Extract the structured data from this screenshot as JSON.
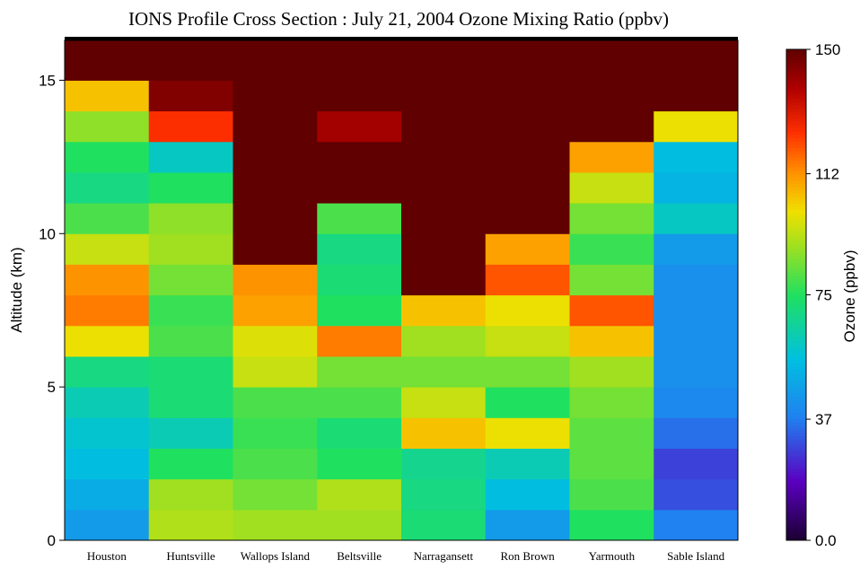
{
  "chart_data": {
    "type": "heatmap",
    "title": "IONS Profile Cross Section  : July 21, 2004     Ozone Mixing Ratio (ppbv)",
    "y_label": "Altitude (km)",
    "z_label": "Ozone (ppbv)",
    "categories": [
      "Houston",
      "Huntsville",
      "Wallops Island",
      "Beltsville",
      "Narragansett",
      "Ron Brown",
      "Yarmouth",
      "Sable Island"
    ],
    "y_bins": [
      0,
      1,
      2,
      3,
      4,
      5,
      6,
      7,
      8,
      9,
      10,
      11,
      12,
      13,
      14,
      15,
      16,
      16.3
    ],
    "z": [
      [
        45,
        50,
        55,
        58,
        62,
        70,
        100,
        115,
        112,
        95,
        80,
        70,
        75,
        88,
        105,
        150,
        150
      ],
      [
        92,
        90,
        75,
        62,
        72,
        72,
        80,
        78,
        85,
        90,
        88,
        75,
        60,
        125,
        145,
        150,
        150
      ],
      [
        90,
        85,
        80,
        78,
        80,
        95,
        98,
        110,
        112,
        150,
        150,
        150,
        150,
        150,
        150,
        150,
        150
      ],
      [
        90,
        92,
        75,
        72,
        80,
        85,
        115,
        75,
        72,
        70,
        80,
        150,
        150,
        140,
        150,
        150,
        150
      ],
      [
        72,
        70,
        68,
        105,
        95,
        85,
        90,
        105,
        150,
        150,
        150,
        150,
        150,
        150,
        150,
        150,
        150
      ],
      [
        45,
        55,
        62,
        100,
        75,
        85,
        95,
        100,
        120,
        110,
        150,
        150,
        150,
        150,
        150,
        150,
        150
      ],
      [
        75,
        80,
        82,
        82,
        85,
        90,
        105,
        120,
        85,
        78,
        85,
        95,
        110,
        150,
        150,
        150,
        150
      ],
      [
        38,
        30,
        28,
        35,
        40,
        42,
        42,
        42,
        42,
        45,
        60,
        52,
        55,
        100,
        150,
        150,
        150
      ]
    ],
    "ylim": [
      0,
      16.3
    ],
    "yticks": [
      0,
      5,
      10,
      15
    ],
    "zlim": [
      0,
      150
    ],
    "zticks": [
      {
        "value": 0,
        "label": "0.0"
      },
      37,
      75,
      112,
      150
    ]
  }
}
